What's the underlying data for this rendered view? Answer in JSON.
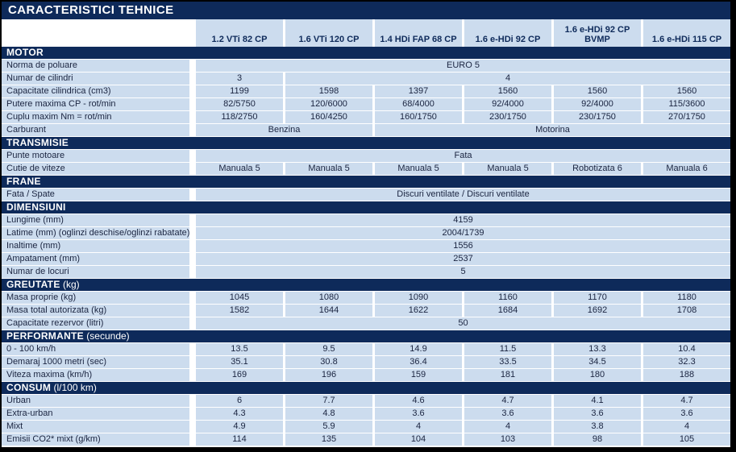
{
  "title": "CARACTERISTICI TEHNICE",
  "colors": {
    "navy": "#0e2a5a",
    "cell_blue": "#ccdcee",
    "ink": "#1a2440",
    "gap_white": "#ffffff",
    "page_border": "#000000"
  },
  "columns": [
    "1.2 VTi 82 CP",
    "1.6 VTi 120 CP",
    "1.4 HDi FAP 68 CP",
    "1.6 e-HDi 92 CP",
    "1.6 e-HDi 92 CP BVMP",
    "1.6 e-HDi 115 CP"
  ],
  "sections": [
    {
      "title": "MOTOR",
      "suffix": "",
      "rows": [
        {
          "label": "Norma de poluare",
          "cells": [
            {
              "text": "EURO 5",
              "span": 6
            }
          ]
        },
        {
          "label": "Numar de cilindri",
          "cells": [
            {
              "text": "3",
              "span": 1
            },
            {
              "text": "4",
              "span": 5
            }
          ]
        },
        {
          "label": "Capacitate cilindrica (cm3)",
          "cells": [
            {
              "text": "1199",
              "span": 1
            },
            {
              "text": "1598",
              "span": 1
            },
            {
              "text": "1397",
              "span": 1
            },
            {
              "text": "1560",
              "span": 1
            },
            {
              "text": "1560",
              "span": 1
            },
            {
              "text": "1560",
              "span": 1
            }
          ]
        },
        {
          "label": "Putere maxima CP - rot/min",
          "cells": [
            {
              "text": "82/5750",
              "span": 1
            },
            {
              "text": "120/6000",
              "span": 1
            },
            {
              "text": "68/4000",
              "span": 1
            },
            {
              "text": "92/4000",
              "span": 1
            },
            {
              "text": "92/4000",
              "span": 1
            },
            {
              "text": "115/3600",
              "span": 1
            }
          ]
        },
        {
          "label": "Cuplu maxim Nm = rot/min",
          "cells": [
            {
              "text": "118/2750",
              "span": 1
            },
            {
              "text": "160/4250",
              "span": 1
            },
            {
              "text": "160/1750",
              "span": 1
            },
            {
              "text": "230/1750",
              "span": 1
            },
            {
              "text": "230/1750",
              "span": 1
            },
            {
              "text": "270/1750",
              "span": 1
            }
          ]
        },
        {
          "label": "Carburant",
          "cells": [
            {
              "text": "Benzina",
              "span": 2
            },
            {
              "text": "Motorina",
              "span": 4
            }
          ]
        }
      ]
    },
    {
      "title": "TRANSMISIE",
      "suffix": "",
      "rows": [
        {
          "label": "Punte motoare",
          "cells": [
            {
              "text": "Fata",
              "span": 6
            }
          ]
        },
        {
          "label": "Cutie de viteze",
          "cells": [
            {
              "text": "Manuala 5",
              "span": 1
            },
            {
              "text": "Manuala 5",
              "span": 1
            },
            {
              "text": "Manuala 5",
              "span": 1
            },
            {
              "text": "Manuala 5",
              "span": 1
            },
            {
              "text": "Robotizata 6",
              "span": 1
            },
            {
              "text": "Manuala 6",
              "span": 1
            }
          ]
        }
      ]
    },
    {
      "title": "FRANE",
      "suffix": "",
      "rows": [
        {
          "label": "Fata / Spate",
          "cells": [
            {
              "text": "Discuri ventilate / Discuri ventilate",
              "span": 6
            }
          ]
        }
      ]
    },
    {
      "title": "DIMENSIUNI",
      "suffix": "",
      "rows": [
        {
          "label": "Lungime (mm)",
          "cells": [
            {
              "text": "4159",
              "span": 6
            }
          ]
        },
        {
          "label": "Latime (mm) (oglinzi deschise/oglinzi rabatate)",
          "cells": [
            {
              "text": "2004/1739",
              "span": 6
            }
          ]
        },
        {
          "label": "Inaltime (mm)",
          "cells": [
            {
              "text": "1556",
              "span": 6
            }
          ]
        },
        {
          "label": "Ampatament (mm)",
          "cells": [
            {
              "text": "2537",
              "span": 6
            }
          ]
        },
        {
          "label": "Numar de locuri",
          "cells": [
            {
              "text": "5",
              "span": 6
            }
          ]
        }
      ]
    },
    {
      "title": "GREUTATE",
      "suffix": " (kg)",
      "rows": [
        {
          "label": "Masa proprie (kg)",
          "cells": [
            {
              "text": "1045",
              "span": 1
            },
            {
              "text": "1080",
              "span": 1
            },
            {
              "text": "1090",
              "span": 1
            },
            {
              "text": "1160",
              "span": 1
            },
            {
              "text": "1170",
              "span": 1
            },
            {
              "text": "1180",
              "span": 1
            }
          ]
        },
        {
          "label": "Masa total autorizata (kg)",
          "cells": [
            {
              "text": "1582",
              "span": 1
            },
            {
              "text": "1644",
              "span": 1
            },
            {
              "text": "1622",
              "span": 1
            },
            {
              "text": "1684",
              "span": 1
            },
            {
              "text": "1692",
              "span": 1
            },
            {
              "text": "1708",
              "span": 1
            }
          ]
        },
        {
          "label": "Capacitate rezervor (litri)",
          "cells": [
            {
              "text": "50",
              "span": 6
            }
          ]
        }
      ]
    },
    {
      "title": "PERFORMANTE",
      "suffix": " (secunde)",
      "rows": [
        {
          "label": "0 - 100 km/h",
          "cells": [
            {
              "text": "13.5",
              "span": 1
            },
            {
              "text": "9.5",
              "span": 1
            },
            {
              "text": "14.9",
              "span": 1
            },
            {
              "text": "11.5",
              "span": 1
            },
            {
              "text": "13.3",
              "span": 1
            },
            {
              "text": "10.4",
              "span": 1
            }
          ]
        },
        {
          "label": "Demaraj 1000 metri (sec)",
          "cells": [
            {
              "text": "35.1",
              "span": 1
            },
            {
              "text": "30.8",
              "span": 1
            },
            {
              "text": "36.4",
              "span": 1
            },
            {
              "text": "33.5",
              "span": 1
            },
            {
              "text": "34.5",
              "span": 1
            },
            {
              "text": "32.3",
              "span": 1
            }
          ]
        },
        {
          "label": "Viteza maxima (km/h)",
          "cells": [
            {
              "text": "169",
              "span": 1
            },
            {
              "text": "196",
              "span": 1
            },
            {
              "text": "159",
              "span": 1
            },
            {
              "text": "181",
              "span": 1
            },
            {
              "text": "180",
              "span": 1
            },
            {
              "text": "188",
              "span": 1
            }
          ]
        }
      ]
    },
    {
      "title": "CONSUM",
      "suffix": " (l/100 km)",
      "rows": [
        {
          "label": "Urban",
          "cells": [
            {
              "text": "6",
              "span": 1
            },
            {
              "text": "7.7",
              "span": 1
            },
            {
              "text": "4.6",
              "span": 1
            },
            {
              "text": "4.7",
              "span": 1
            },
            {
              "text": "4.1",
              "span": 1
            },
            {
              "text": "4.7",
              "span": 1
            }
          ]
        },
        {
          "label": "Extra-urban",
          "cells": [
            {
              "text": "4.3",
              "span": 1
            },
            {
              "text": "4.8",
              "span": 1
            },
            {
              "text": "3.6",
              "span": 1
            },
            {
              "text": "3.6",
              "span": 1
            },
            {
              "text": "3.6",
              "span": 1
            },
            {
              "text": "3.6",
              "span": 1
            }
          ]
        },
        {
          "label": "Mixt",
          "cells": [
            {
              "text": "4.9",
              "span": 1
            },
            {
              "text": "5.9",
              "span": 1
            },
            {
              "text": "4",
              "span": 1
            },
            {
              "text": "4",
              "span": 1
            },
            {
              "text": "3.8",
              "span": 1
            },
            {
              "text": "4",
              "span": 1
            }
          ]
        },
        {
          "label": "Emisii CO2* mixt (g/km)",
          "cells": [
            {
              "text": "114",
              "span": 1
            },
            {
              "text": "135",
              "span": 1
            },
            {
              "text": "104",
              "span": 1
            },
            {
              "text": "103",
              "span": 1
            },
            {
              "text": "98",
              "span": 1
            },
            {
              "text": "105",
              "span": 1
            }
          ]
        }
      ]
    }
  ]
}
